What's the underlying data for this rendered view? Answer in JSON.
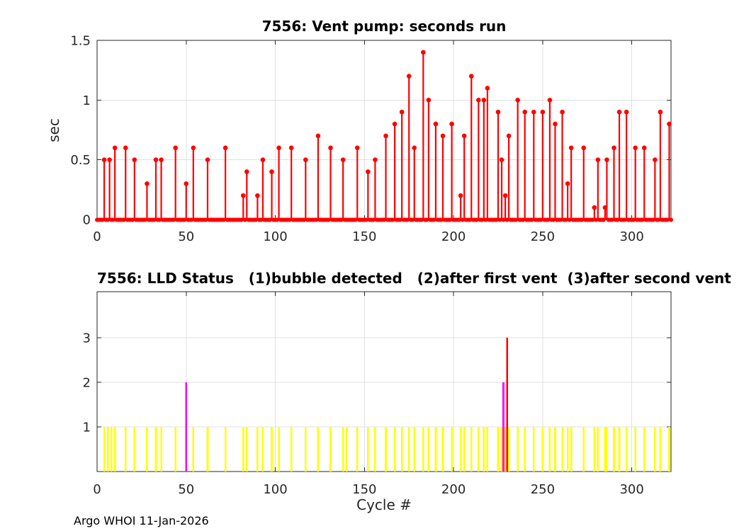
{
  "figure": {
    "footer": "Argo WHOI 11-Jan-2026"
  },
  "colors": {
    "stem": "#ff0000",
    "status1": "#ffff00",
    "status2": "#ff00ff",
    "status3": "#ff0000",
    "grid": "#e0e0e0",
    "axis": "#262626",
    "tick_text": "#262626"
  },
  "chart_data": [
    {
      "type": "stem",
      "title": "7556: Vent pump: seconds run",
      "ylabel": "sec",
      "xlim": [
        0,
        322
      ],
      "ylim": [
        0,
        1.5
      ],
      "xticks": [
        0,
        50,
        100,
        150,
        200,
        250,
        300
      ],
      "yticks": [
        0,
        0.5,
        1,
        1.5
      ],
      "ytick_labels": [
        "0",
        "0.5",
        "1",
        "1.5"
      ],
      "grid": true,
      "legend_position": "none",
      "zero_baseline": true,
      "series": [
        {
          "name": "seconds run",
          "color": "#ff0000",
          "points": [
            [
              4,
              0.5
            ],
            [
              7,
              0.5
            ],
            [
              10,
              0.6
            ],
            [
              16,
              0.6
            ],
            [
              21,
              0.5
            ],
            [
              28,
              0.3
            ],
            [
              33,
              0.5
            ],
            [
              36,
              0.5
            ],
            [
              44,
              0.6
            ],
            [
              50,
              0.3
            ],
            [
              54,
              0.6
            ],
            [
              62,
              0.5
            ],
            [
              72,
              0.6
            ],
            [
              82,
              0.2
            ],
            [
              84,
              0.4
            ],
            [
              90,
              0.2
            ],
            [
              93,
              0.5
            ],
            [
              98,
              0.4
            ],
            [
              102,
              0.6
            ],
            [
              109,
              0.6
            ],
            [
              117,
              0.5
            ],
            [
              124,
              0.7
            ],
            [
              131,
              0.6
            ],
            [
              138,
              0.5
            ],
            [
              146,
              0.6
            ],
            [
              152,
              0.4
            ],
            [
              156,
              0.5
            ],
            [
              162,
              0.7
            ],
            [
              167,
              0.8
            ],
            [
              171,
              0.9
            ],
            [
              175,
              1.2
            ],
            [
              178,
              0.6
            ],
            [
              183,
              1.4
            ],
            [
              186,
              1.0
            ],
            [
              190,
              0.8
            ],
            [
              194,
              0.7
            ],
            [
              199,
              0.8
            ],
            [
              204,
              0.2
            ],
            [
              206,
              0.7
            ],
            [
              210,
              1.2
            ],
            [
              214,
              1.0
            ],
            [
              217,
              1.0
            ],
            [
              219,
              1.1
            ],
            [
              225,
              0.9
            ],
            [
              227,
              0.5
            ],
            [
              229,
              0.2
            ],
            [
              231,
              0.7
            ],
            [
              236,
              1.0
            ],
            [
              240,
              0.9
            ],
            [
              245,
              0.9
            ],
            [
              250,
              0.9
            ],
            [
              254,
              1.0
            ],
            [
              257,
              0.8
            ],
            [
              261,
              0.9
            ],
            [
              264,
              0.3
            ],
            [
              266,
              0.6
            ],
            [
              273,
              0.6
            ],
            [
              279,
              0.1
            ],
            [
              281,
              0.5
            ],
            [
              285,
              0.1
            ],
            [
              286,
              0.5
            ],
            [
              290,
              0.6
            ],
            [
              293,
              0.9
            ],
            [
              297,
              0.9
            ],
            [
              302,
              0.6
            ],
            [
              307,
              0.6
            ],
            [
              313,
              0.5
            ],
            [
              316,
              0.9
            ],
            [
              321,
              0.8
            ]
          ]
        }
      ]
    },
    {
      "type": "bar",
      "title": "7556: LLD Status   (1)bubble detected   (2)after first vent  (3)after second vent",
      "xlabel": "Cycle #",
      "xlim": [
        0,
        322
      ],
      "ylim": [
        0,
        4.03
      ],
      "xticks": [
        0,
        50,
        100,
        150,
        200,
        250,
        300
      ],
      "yticks": [
        1,
        2,
        3
      ],
      "grid": true,
      "legend_position": "none",
      "series": [
        {
          "name": "(1)bubble detected",
          "color": "#ffff00",
          "value": 1,
          "cycles": [
            4,
            6,
            8,
            10,
            16,
            21,
            28,
            33,
            36,
            44,
            54,
            62,
            72,
            82,
            84,
            90,
            93,
            98,
            102,
            109,
            117,
            124,
            131,
            138,
            140,
            146,
            152,
            156,
            162,
            167,
            171,
            175,
            178,
            183,
            186,
            190,
            194,
            199,
            204,
            206,
            210,
            214,
            217,
            219,
            225,
            227,
            229,
            231,
            236,
            240,
            245,
            250,
            254,
            257,
            261,
            264,
            266,
            273,
            279,
            281,
            285,
            286,
            290,
            293,
            297,
            302,
            307,
            313,
            316,
            321
          ]
        },
        {
          "name": "(2)after first vent",
          "color": "#ff00ff",
          "value": 2,
          "cycles": [
            50,
            228
          ]
        },
        {
          "name": "(3)after second vent",
          "color": "#ff0000",
          "value": 3,
          "cycles": [
            230
          ]
        }
      ]
    }
  ]
}
